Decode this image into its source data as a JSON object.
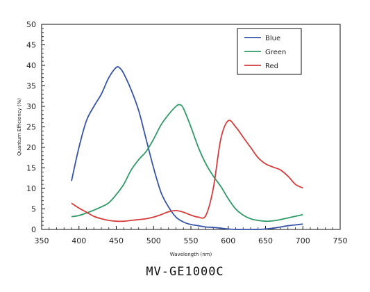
{
  "chart_data": {
    "type": "line",
    "xlabel": "Wavelength (nm)",
    "ylabel": "Quantum Efficiency (%)",
    "xlim": [
      350,
      750
    ],
    "ylim": [
      0,
      50
    ],
    "xticks": [
      350,
      400,
      450,
      500,
      550,
      600,
      650,
      700,
      750
    ],
    "yticks": [
      0,
      5,
      10,
      15,
      20,
      25,
      30,
      35,
      40,
      45,
      50
    ],
    "grid": false,
    "legend_position": "top-right",
    "series": [
      {
        "name": "Blue",
        "color": "#3653a8",
        "points": [
          [
            390,
            11.8
          ],
          [
            400,
            20
          ],
          [
            410,
            26.5
          ],
          [
            420,
            30
          ],
          [
            430,
            33
          ],
          [
            440,
            37
          ],
          [
            450,
            39.5
          ],
          [
            455,
            39.3
          ],
          [
            460,
            38
          ],
          [
            470,
            34
          ],
          [
            480,
            29
          ],
          [
            490,
            22
          ],
          [
            500,
            15
          ],
          [
            510,
            9
          ],
          [
            520,
            5.5
          ],
          [
            530,
            3
          ],
          [
            540,
            1.8
          ],
          [
            550,
            1.2
          ],
          [
            560,
            0.9
          ],
          [
            570,
            0.6
          ],
          [
            580,
            0.5
          ],
          [
            590,
            0.3
          ],
          [
            600,
            0.1
          ],
          [
            610,
            0.0
          ],
          [
            620,
            0.0
          ],
          [
            630,
            0.0
          ],
          [
            640,
            0.0
          ],
          [
            650,
            0.1
          ],
          [
            660,
            0.3
          ],
          [
            670,
            0.6
          ],
          [
            680,
            0.9
          ],
          [
            690,
            1.1
          ],
          [
            700,
            1.3
          ]
        ]
      },
      {
        "name": "Green",
        "color": "#2e9966",
        "points": [
          [
            390,
            3.1
          ],
          [
            400,
            3.4
          ],
          [
            410,
            4.0
          ],
          [
            420,
            4.7
          ],
          [
            430,
            5.5
          ],
          [
            440,
            6.5
          ],
          [
            450,
            8.5
          ],
          [
            460,
            11
          ],
          [
            470,
            14.5
          ],
          [
            480,
            17
          ],
          [
            490,
            19
          ],
          [
            500,
            22
          ],
          [
            510,
            25.5
          ],
          [
            520,
            28
          ],
          [
            530,
            30
          ],
          [
            535,
            30.4
          ],
          [
            540,
            29.5
          ],
          [
            550,
            25
          ],
          [
            560,
            20
          ],
          [
            570,
            16
          ],
          [
            580,
            13
          ],
          [
            590,
            10.5
          ],
          [
            600,
            7.5
          ],
          [
            610,
            5
          ],
          [
            620,
            3.5
          ],
          [
            630,
            2.6
          ],
          [
            640,
            2.2
          ],
          [
            650,
            2.0
          ],
          [
            660,
            2.1
          ],
          [
            670,
            2.4
          ],
          [
            680,
            2.8
          ],
          [
            690,
            3.2
          ],
          [
            700,
            3.6
          ]
        ]
      },
      {
        "name": "Red",
        "color": "#d63b3b",
        "points": [
          [
            390,
            6.4
          ],
          [
            400,
            5.2
          ],
          [
            410,
            4.2
          ],
          [
            420,
            3.2
          ],
          [
            430,
            2.6
          ],
          [
            440,
            2.2
          ],
          [
            450,
            2.0
          ],
          [
            460,
            2.0
          ],
          [
            470,
            2.2
          ],
          [
            480,
            2.4
          ],
          [
            490,
            2.6
          ],
          [
            500,
            3.0
          ],
          [
            510,
            3.6
          ],
          [
            520,
            4.3
          ],
          [
            530,
            4.6
          ],
          [
            540,
            4.2
          ],
          [
            550,
            3.5
          ],
          [
            560,
            3.0
          ],
          [
            570,
            3.4
          ],
          [
            580,
            10
          ],
          [
            590,
            22
          ],
          [
            600,
            26.5
          ],
          [
            610,
            25
          ],
          [
            620,
            22.5
          ],
          [
            630,
            20
          ],
          [
            640,
            17.5
          ],
          [
            650,
            16
          ],
          [
            660,
            15.2
          ],
          [
            670,
            14.5
          ],
          [
            680,
            13
          ],
          [
            690,
            11
          ],
          [
            700,
            10.1
          ]
        ]
      }
    ]
  },
  "caption": "MV-GE1000C"
}
